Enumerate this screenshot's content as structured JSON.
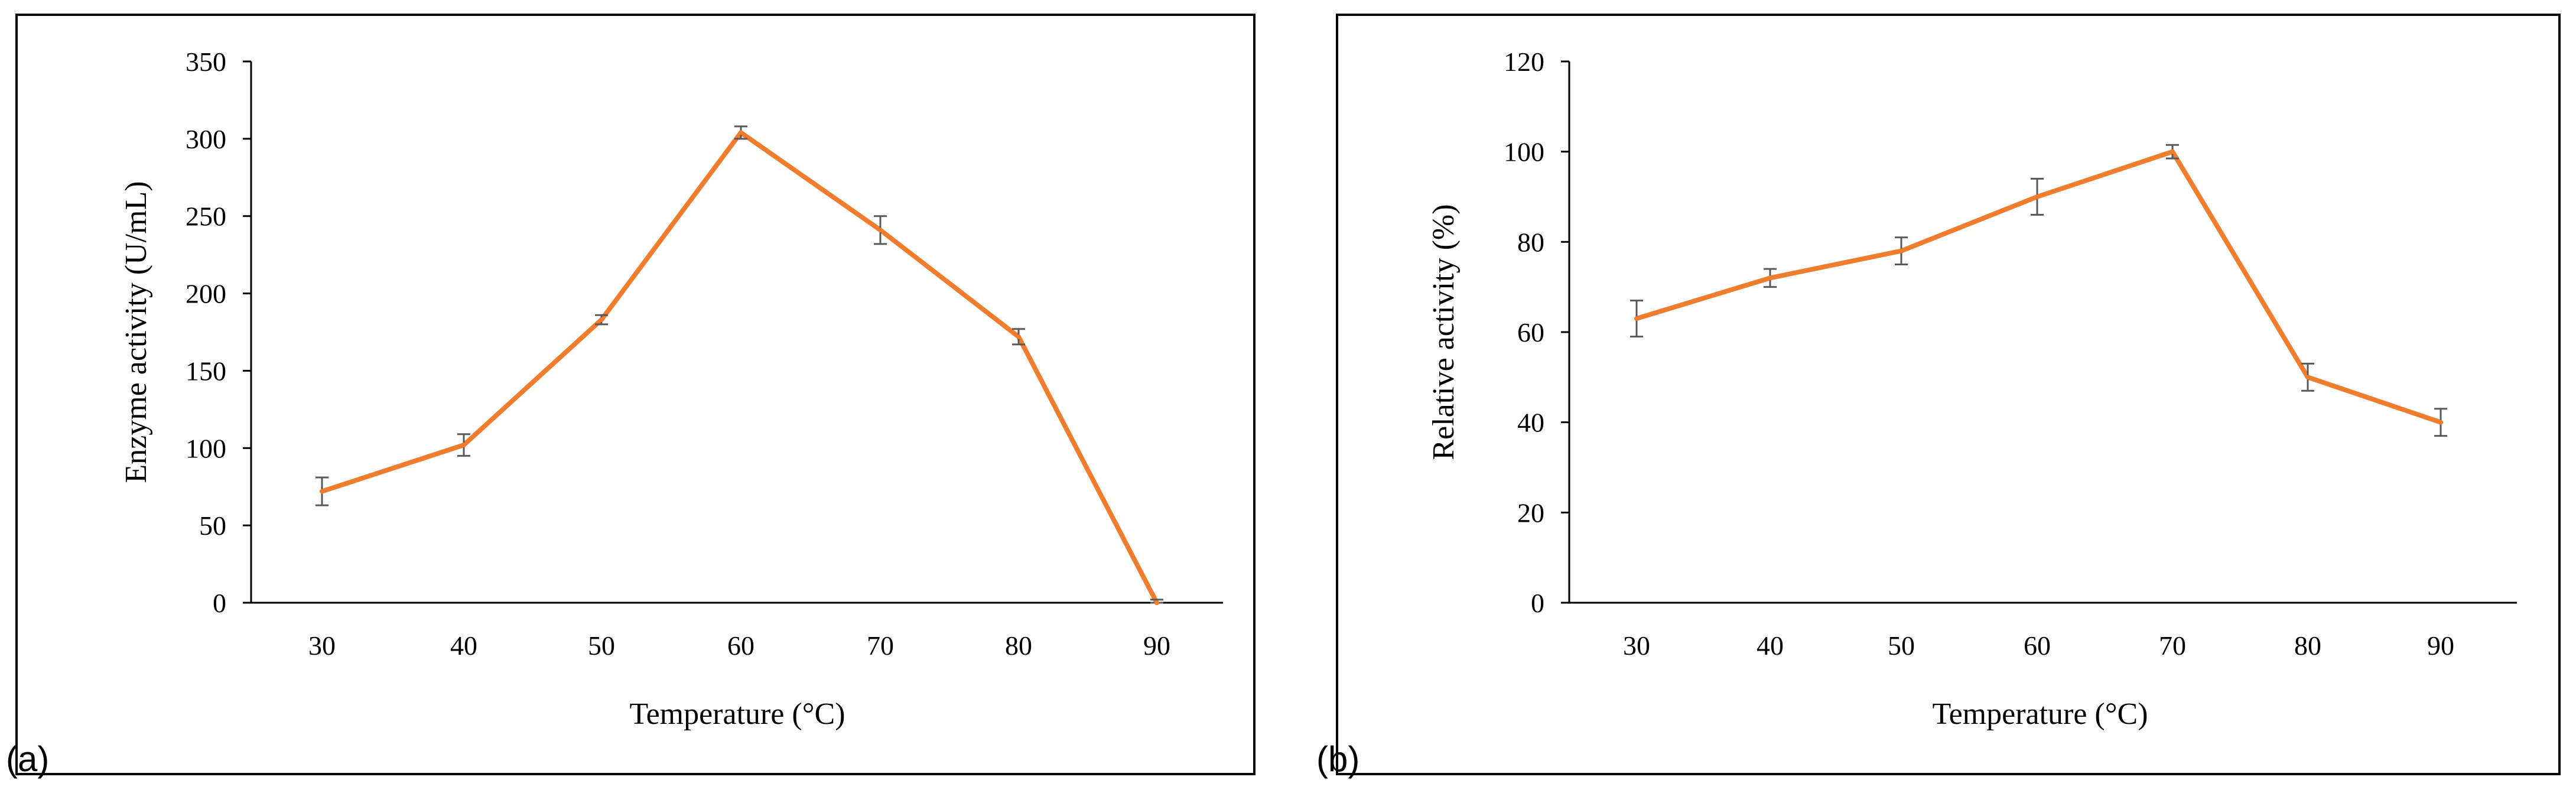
{
  "colors": {
    "series": "#f07c2e",
    "error_bar": "#595959",
    "axis": "#000000"
  },
  "chart_data": [
    {
      "type": "line",
      "panel_label": "(a)",
      "title": "",
      "xlabel": "Temperature (°C)",
      "ylabel": "Enzyme activity (U/mL)",
      "x": [
        30,
        40,
        50,
        60,
        70,
        80,
        90
      ],
      "series": [
        {
          "values": [
            72,
            102,
            183,
            304,
            241,
            172,
            0
          ],
          "error": [
            9,
            7,
            3,
            4,
            9,
            5,
            2
          ]
        }
      ],
      "ylim": [
        0,
        350
      ],
      "yticks": [
        0,
        50,
        100,
        150,
        200,
        250,
        300,
        350
      ],
      "grid": false,
      "legend": "none"
    },
    {
      "type": "line",
      "panel_label": "(b)",
      "title": "",
      "xlabel": "Temperature (°C)",
      "ylabel": "Relative activity (%)",
      "x": [
        30,
        40,
        50,
        60,
        70,
        80,
        90
      ],
      "series": [
        {
          "values": [
            63,
            72,
            78,
            90,
            100,
            50,
            40
          ],
          "error": [
            4,
            2,
            3,
            4,
            1.5,
            3,
            3
          ]
        }
      ],
      "ylim": [
        0,
        120
      ],
      "yticks": [
        0,
        20,
        40,
        60,
        80,
        100,
        120
      ],
      "grid": false,
      "legend": "none"
    }
  ]
}
